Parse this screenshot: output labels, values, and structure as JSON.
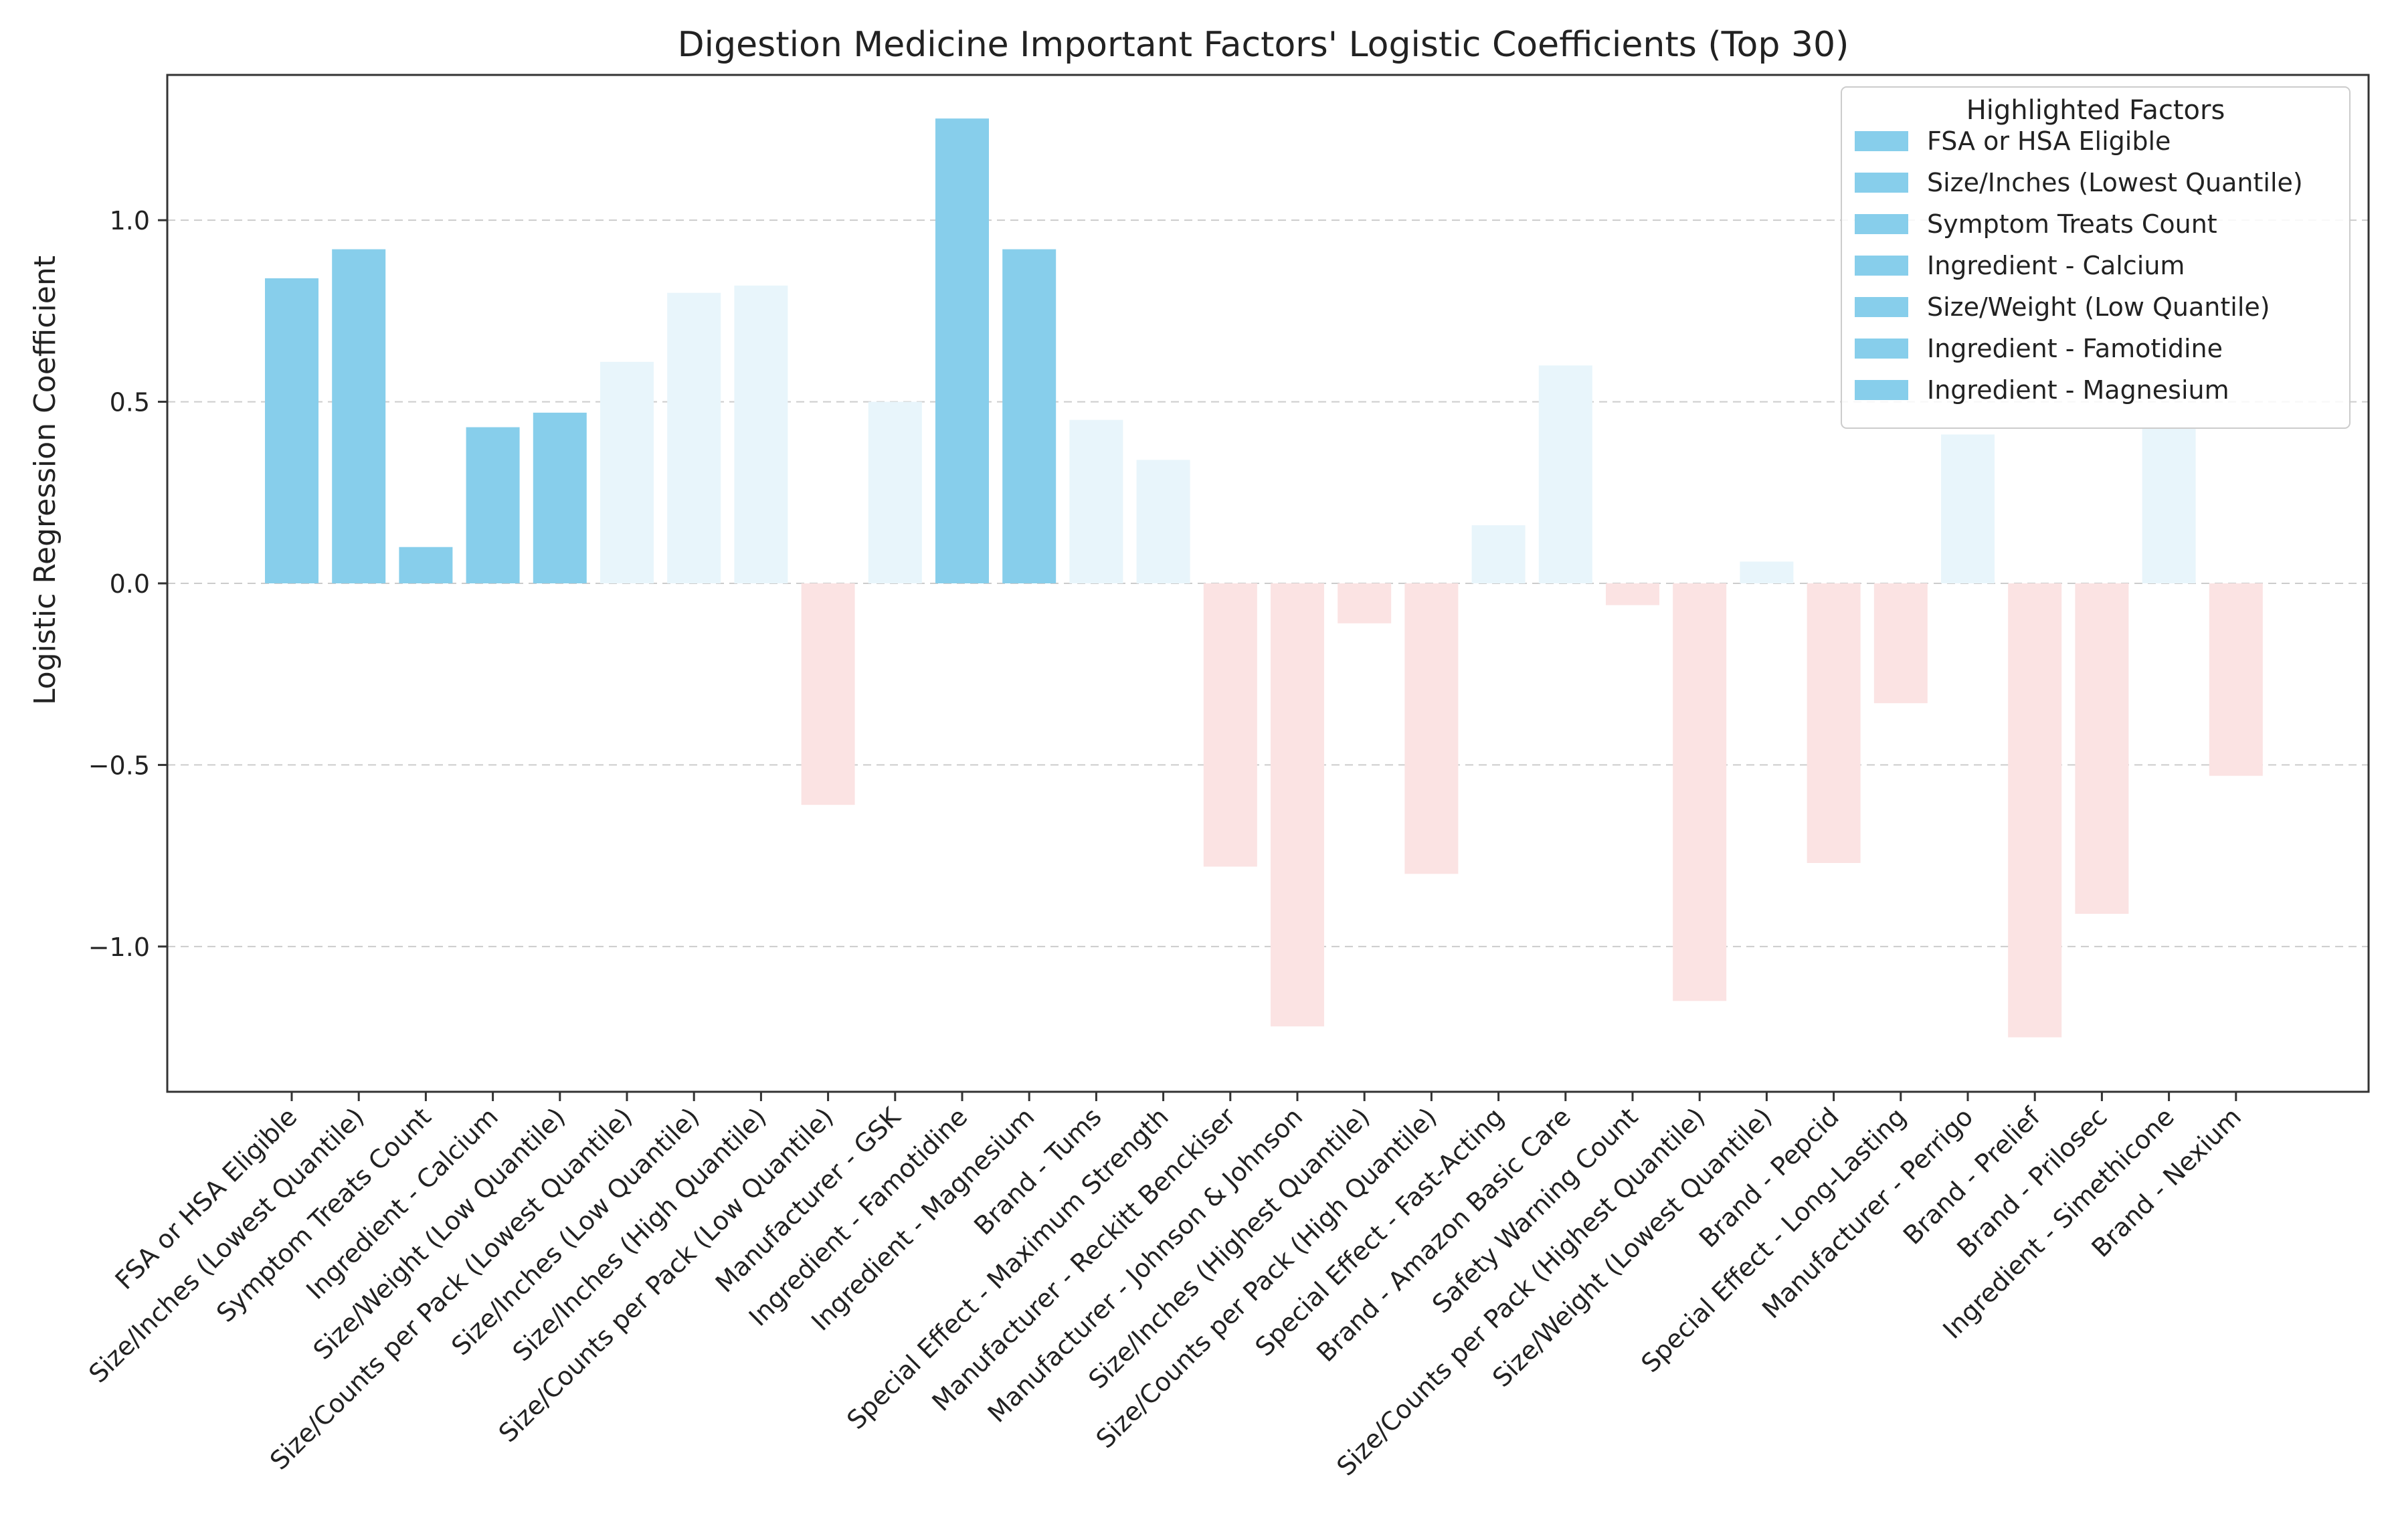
{
  "chart_data": {
    "type": "bar",
    "title": "Digestion Medicine Important Factors' Logistic Coefficients (Top 30)",
    "xlabel": "",
    "ylabel": "Logistic Regression Coefficient",
    "ylim": [
      -1.4,
      1.4
    ],
    "yticks": [
      {
        "value": 1.0,
        "label": "1.0"
      },
      {
        "value": 0.5,
        "label": "0.5"
      },
      {
        "value": 0.0,
        "label": "0.0"
      },
      {
        "value": -0.5,
        "label": "−0.5"
      },
      {
        "value": -1.0,
        "label": "−1.0"
      }
    ],
    "grid": "horizontal dashed",
    "categories": [
      "FSA or HSA Eligible",
      "Size/Inches (Lowest Quantile)",
      "Symptom Treats Count",
      "Ingredient - Calcium",
      "Size/Weight (Low Quantile)",
      "Size/Counts per Pack (Lowest Quantile)",
      "Size/Inches (Low Quantile)",
      "Size/Inches (High Quantile)",
      "Size/Counts per Pack (Low Quantile)",
      "Manufacturer - GSK",
      "Ingredient - Famotidine",
      "Ingredient - Magnesium",
      "Brand - Tums",
      "Special Effect - Maximum Strength",
      "Manufacturer - Reckitt Benckiser",
      "Manufacturer - Johnson & Johnson",
      "Size/Inches (Highest Quantile)",
      "Size/Counts per Pack (High Quantile)",
      "Special Effect - Fast-Acting",
      "Brand - Amazon Basic Care",
      "Safety Warning Count",
      "Size/Counts per Pack (Highest Quantile)",
      "Size/Weight (Lowest Quantile)",
      "Brand - Pepcid",
      "Special Effect - Long-Lasting",
      "Manufacturer - Perrigo",
      "Brand - Prelief",
      "Brand - Prilosec",
      "Ingredient - Simethicone",
      "Brand - Nexium"
    ],
    "values": [
      0.84,
      0.92,
      0.1,
      0.43,
      0.47,
      0.61,
      0.8,
      0.82,
      -0.61,
      0.5,
      1.28,
      0.92,
      0.45,
      0.34,
      -0.78,
      -1.22,
      -0.11,
      -0.8,
      0.16,
      0.6,
      -0.06,
      -1.15,
      0.06,
      -0.77,
      -0.33,
      0.41,
      -1.25,
      -0.91,
      0.43,
      -0.53
    ],
    "highlighted": [
      true,
      true,
      true,
      true,
      true,
      false,
      false,
      false,
      false,
      false,
      true,
      true,
      false,
      false,
      false,
      false,
      false,
      false,
      false,
      false,
      false,
      false,
      false,
      false,
      false,
      false,
      false,
      false,
      false,
      false
    ],
    "colors": {
      "highlight": "#87ceeb",
      "positive_faded": "#e8f5fb",
      "negative_faded": "#fbe3e3",
      "grid": "#cccccc",
      "axis": "#333333"
    },
    "legend": {
      "title": "Highlighted Factors",
      "placement": "top-right",
      "entries": [
        "FSA or HSA Eligible",
        "Size/Inches (Lowest Quantile)",
        "Symptom Treats Count",
        "Ingredient - Calcium",
        "Size/Weight (Low Quantile)",
        "Ingredient - Famotidine",
        "Ingredient - Magnesium"
      ]
    }
  }
}
